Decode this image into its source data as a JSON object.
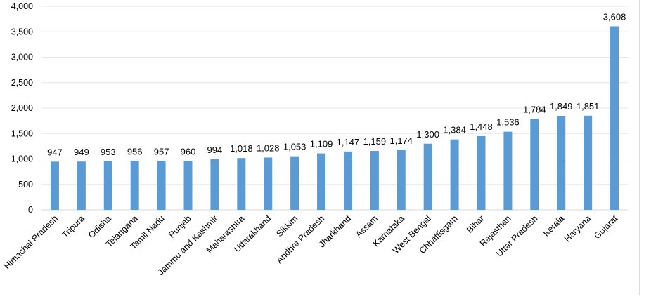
{
  "chart_data": {
    "type": "bar",
    "title": "",
    "xlabel": "",
    "ylabel": "",
    "ylim": [
      0,
      4000
    ],
    "yticks": [
      0,
      500,
      1000,
      1500,
      2000,
      2500,
      3000,
      3500,
      4000
    ],
    "ytick_labels": [
      "0",
      "500",
      "1,000",
      "1,500",
      "2,000",
      "2,500",
      "3,000",
      "3,500",
      "4,000"
    ],
    "grid": true,
    "legend": "none",
    "bar_color": "#5b9bd5",
    "categories": [
      "Himachal Pradesh",
      "Tripura",
      "Odisha",
      "Telangana",
      "Tamil Nadu",
      "Punjab",
      "Jammu and Kashmir",
      "Maharashtra",
      "Uttarakhand",
      "Sikkim",
      "Andhra Pradesh",
      "Jharkhand",
      "Assam",
      "Karnataka",
      "West Bengal",
      "Chhattisgarh",
      "Bihar",
      "Rajasthan",
      "Uttar Pradesh",
      "Kerala",
      "Haryana",
      "Gujarat"
    ],
    "values": [
      947,
      949,
      953,
      956,
      957,
      960,
      994,
      1018,
      1028,
      1053,
      1109,
      1147,
      1159,
      1174,
      1300,
      1384,
      1448,
      1536,
      1784,
      1849,
      1851,
      3608
    ],
    "value_labels": [
      "947",
      "949",
      "953",
      "956",
      "957",
      "960",
      "994",
      "1,018",
      "1,028",
      "1,053",
      "1,109",
      "1,147",
      "1,159",
      "1,174",
      "1,300",
      "1,384",
      "1,448",
      "1,536",
      "1,784",
      "1,849",
      "1,851",
      "3,608"
    ]
  }
}
